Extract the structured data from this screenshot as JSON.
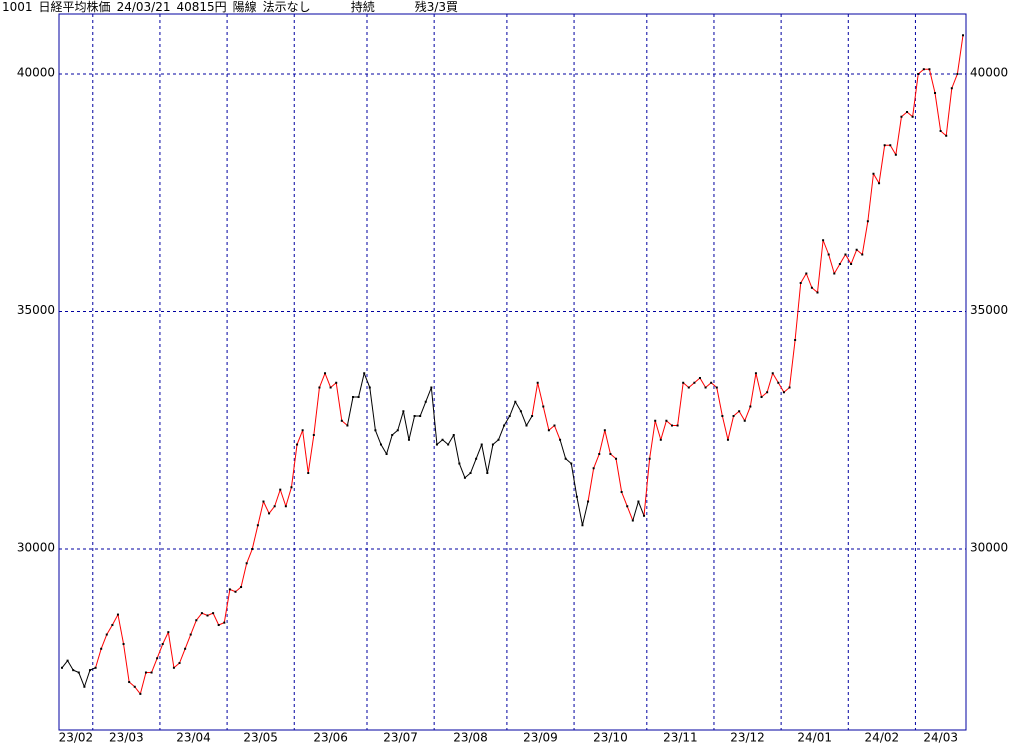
{
  "chart_data": {
    "type": "line",
    "header": {
      "code": "1001",
      "name": "日経平均株価",
      "date": "24/03/21",
      "price": "40815円",
      "candle": "陽線",
      "signal": "法示なし",
      "trend": "持続",
      "position": "残3/3買"
    },
    "categories": [
      "23/02",
      null,
      null,
      null,
      null,
      null,
      "23/03",
      null,
      null,
      null,
      null,
      null,
      null,
      null,
      null,
      null,
      null,
      null,
      "23/04",
      null,
      null,
      null,
      null,
      null,
      null,
      null,
      null,
      null,
      null,
      null,
      "23/05",
      null,
      null,
      null,
      null,
      null,
      null,
      null,
      null,
      null,
      null,
      null,
      "23/06",
      null,
      null,
      null,
      null,
      null,
      null,
      null,
      null,
      null,
      null,
      null,
      null,
      "23/07",
      null,
      null,
      null,
      null,
      null,
      null,
      null,
      null,
      null,
      null,
      null,
      "23/08",
      null,
      null,
      null,
      null,
      null,
      null,
      null,
      null,
      null,
      null,
      null,
      null,
      "23/09",
      null,
      null,
      null,
      null,
      null,
      null,
      null,
      null,
      null,
      null,
      null,
      "23/10",
      null,
      null,
      null,
      null,
      null,
      null,
      null,
      null,
      null,
      null,
      null,
      null,
      "23/11",
      null,
      null,
      null,
      null,
      null,
      null,
      null,
      null,
      null,
      null,
      null,
      "23/12",
      null,
      null,
      null,
      null,
      null,
      null,
      null,
      null,
      null,
      null,
      null,
      "24/01",
      null,
      null,
      null,
      null,
      null,
      null,
      null,
      null,
      null,
      null,
      null,
      "24/02",
      null,
      null,
      null,
      null,
      null,
      null,
      null,
      null,
      null,
      null,
      null,
      "24/03",
      null,
      null,
      null,
      null,
      null,
      null,
      null,
      null
    ],
    "values": [
      27500,
      27650,
      27450,
      27400,
      27100,
      27450,
      27500,
      27900,
      28200,
      28400,
      28620,
      28000,
      27200,
      27100,
      26950,
      27400,
      27400,
      27700,
      28000,
      28250,
      27500,
      27600,
      27900,
      28200,
      28500,
      28650,
      28600,
      28650,
      28400,
      28450,
      29150,
      29100,
      29200,
      29700,
      30000,
      30500,
      31000,
      30750,
      30900,
      31250,
      30900,
      31300,
      32200,
      32500,
      31600,
      32400,
      33400,
      33700,
      33400,
      33500,
      32700,
      32600,
      33200,
      33200,
      33700,
      33400,
      32500,
      32200,
      32000,
      32400,
      32500,
      32900,
      32300,
      32800,
      32800,
      33100,
      33400,
      32200,
      32300,
      32200,
      32400,
      31800,
      31500,
      31600,
      31900,
      32200,
      31600,
      32200,
      32300,
      32600,
      32800,
      33100,
      32900,
      32600,
      32800,
      33500,
      33000,
      32500,
      32600,
      32300,
      31900,
      31800,
      31100,
      30500,
      31000,
      31700,
      32000,
      32500,
      32000,
      31900,
      31200,
      30900,
      30600,
      31000,
      30700,
      31900,
      32700,
      32300,
      32700,
      32600,
      32600,
      33500,
      33400,
      33500,
      33600,
      33400,
      33500,
      33400,
      32800,
      32300,
      32800,
      32900,
      32700,
      33000,
      33700,
      33200,
      33300,
      33700,
      33500,
      33300,
      33400,
      34400,
      35600,
      35800,
      35500,
      35400,
      36500,
      36200,
      35800,
      36000,
      36200,
      36000,
      36300,
      36200,
      36900,
      37900,
      37700,
      38500,
      38500,
      38300,
      39100,
      39200,
      39100,
      40000,
      40100,
      40100,
      39600,
      38800,
      38700,
      39700,
      40000,
      40815
    ],
    "colors": [
      "black",
      "black",
      "black",
      "black",
      "black",
      "black",
      "black",
      "red",
      "red",
      "red",
      "red",
      "red",
      "red",
      "red",
      "red",
      "red",
      "red",
      "red",
      "red",
      "red",
      "red",
      "red",
      "red",
      "red",
      "red",
      "red",
      "red",
      "red",
      "red",
      "red",
      "red",
      "red",
      "red",
      "red",
      "red",
      "red",
      "red",
      "red",
      "red",
      "red",
      "red",
      "red",
      "red",
      "red",
      "red",
      "red",
      "red",
      "red",
      "red",
      "red",
      "red",
      "red",
      "black",
      "black",
      "black",
      "black",
      "black",
      "black",
      "black",
      "black",
      "black",
      "black",
      "black",
      "black",
      "black",
      "black",
      "black",
      "black",
      "black",
      "black",
      "black",
      "black",
      "black",
      "black",
      "black",
      "black",
      "black",
      "black",
      "black",
      "black",
      "black",
      "black",
      "black",
      "black",
      "black",
      "red",
      "red",
      "red",
      "red",
      "red",
      "black",
      "black",
      "black",
      "black",
      "black",
      "red",
      "red",
      "red",
      "red",
      "red",
      "red",
      "red",
      "red",
      "black",
      "black",
      "red",
      "red",
      "red",
      "red",
      "red",
      "red",
      "red",
      "red",
      "red",
      "red",
      "red",
      "red",
      "red",
      "red",
      "red",
      "red",
      "red",
      "red",
      "red",
      "red",
      "red",
      "red",
      "red",
      "red",
      "red",
      "red",
      "red",
      "red",
      "red",
      "red",
      "red",
      "red",
      "red",
      "red",
      "red",
      "red",
      "red",
      "red",
      "red",
      "red",
      "red",
      "red",
      "red",
      "red",
      "red",
      "red",
      "red",
      "red",
      "red",
      "red",
      "red",
      "red",
      "red",
      "red",
      "red",
      "red",
      "red"
    ],
    "ylim": [
      26190,
      41263
    ],
    "yticks": [
      30000,
      35000,
      40000
    ],
    "grid": true,
    "axis_color": "#0000a0"
  }
}
